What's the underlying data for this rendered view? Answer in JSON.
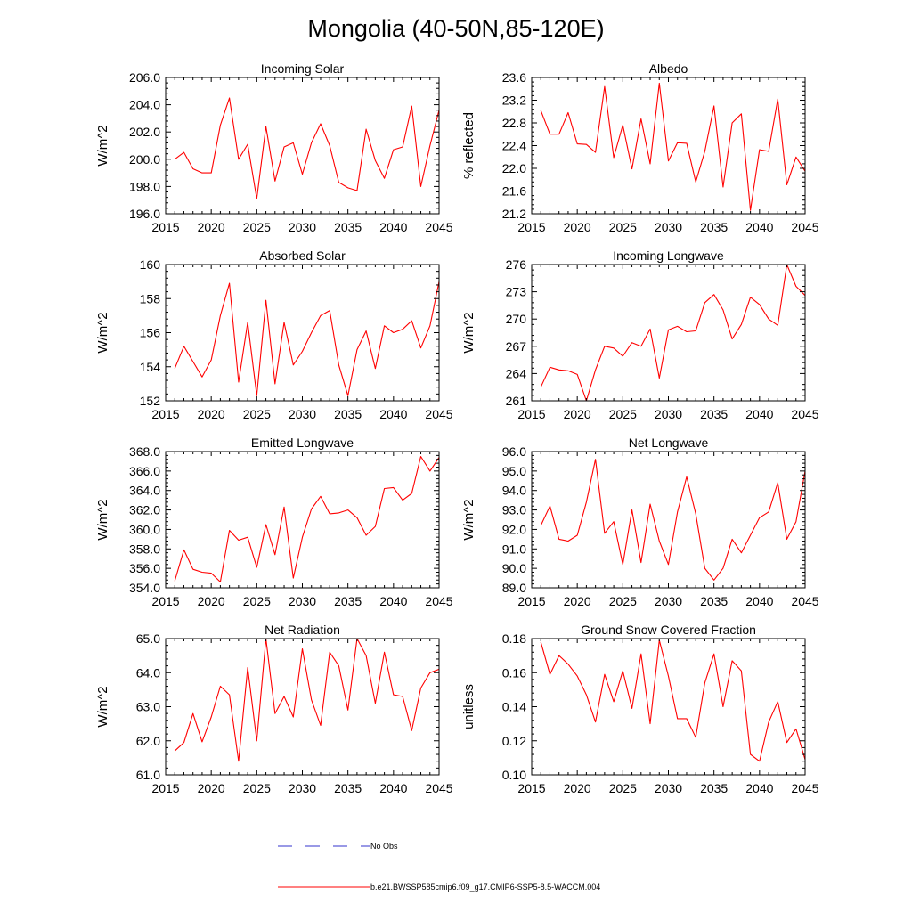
{
  "figure_title": "Mongolia (40-50N,85-120E)",
  "legend": [
    {
      "label": "No Obs",
      "color": "#3333cc",
      "style": "dashed"
    },
    {
      "label": "b.e21.BWSSP585cmip6.f09_g17.CMIP6-SSP5-8.5-WACCM.004",
      "color": "#ff0000",
      "style": "solid"
    }
  ],
  "chart_data": [
    {
      "type": "line",
      "title": "Incoming Solar",
      "xlabel": "",
      "ylabel": "W/m^2",
      "xlim": [
        2015,
        2045
      ],
      "ylim": [
        196,
        206
      ],
      "xticks": [
        2015,
        2020,
        2025,
        2030,
        2035,
        2040,
        2045
      ],
      "xtick_labels": [
        "2015",
        "2020",
        "2025",
        "2030",
        "2035",
        "2040",
        "2045"
      ],
      "yticks": [
        196,
        198,
        200,
        202,
        204,
        206
      ],
      "ytick_labels": [
        "196.0",
        "198.0",
        "200.0",
        "202.0",
        "204.0",
        "206.0"
      ],
      "series": [
        {
          "name": "b.e21.BWSSP585cmip6.f09_g17.CMIP6-SSP5-8.5-WACCM.004",
          "color": "#ff0000",
          "x": [
            2016,
            2017,
            2018,
            2019,
            2020,
            2021,
            2022,
            2023,
            2024,
            2025,
            2026,
            2027,
            2028,
            2029,
            2030,
            2031,
            2032,
            2033,
            2034,
            2035,
            2036,
            2037,
            2038,
            2039,
            2040,
            2041,
            2042,
            2043,
            2044,
            2045
          ],
          "y": [
            200.0,
            200.5,
            199.3,
            199.0,
            199.0,
            202.5,
            204.5,
            200.0,
            201.1,
            197.1,
            202.4,
            198.4,
            200.9,
            201.2,
            198.9,
            201.2,
            202.6,
            201.0,
            198.3,
            197.9,
            197.7,
            202.2,
            199.9,
            198.6,
            200.7,
            200.9,
            203.9,
            198.0,
            201.0,
            203.6
          ]
        }
      ]
    },
    {
      "type": "line",
      "title": "Albedo",
      "xlabel": "",
      "ylabel": "% reflected",
      "xlim": [
        2015,
        2045
      ],
      "ylim": [
        21.2,
        23.6
      ],
      "xticks": [
        2015,
        2020,
        2025,
        2030,
        2035,
        2040,
        2045
      ],
      "xtick_labels": [
        "2015",
        "2020",
        "2025",
        "2030",
        "2035",
        "2040",
        "2045"
      ],
      "yticks": [
        21.2,
        21.6,
        22.0,
        22.4,
        22.8,
        23.2,
        23.6
      ],
      "ytick_labels": [
        "21.2",
        "21.6",
        "22.0",
        "22.4",
        "22.8",
        "23.2",
        "23.6"
      ],
      "series": [
        {
          "name": "b.e21.BWSSP585cmip6.f09_g17.CMIP6-SSP5-8.5-WACCM.004",
          "color": "#ff0000",
          "x": [
            2016,
            2017,
            2018,
            2019,
            2020,
            2021,
            2022,
            2023,
            2024,
            2025,
            2026,
            2027,
            2028,
            2029,
            2030,
            2031,
            2032,
            2033,
            2034,
            2035,
            2036,
            2037,
            2038,
            2039,
            2040,
            2041,
            2042,
            2043,
            2044,
            2045
          ],
          "y": [
            23.02,
            22.6,
            22.6,
            22.98,
            22.43,
            22.42,
            22.28,
            23.44,
            22.19,
            22.76,
            21.99,
            22.87,
            22.08,
            23.5,
            22.13,
            22.45,
            22.44,
            21.76,
            22.3,
            23.1,
            21.67,
            22.8,
            22.96,
            21.26,
            22.33,
            22.3,
            23.22,
            21.71,
            22.2,
            21.95
          ]
        }
      ]
    },
    {
      "type": "line",
      "title": "Absorbed Solar",
      "xlabel": "",
      "ylabel": "W/m^2",
      "xlim": [
        2015,
        2045
      ],
      "ylim": [
        152,
        160
      ],
      "xticks": [
        2015,
        2020,
        2025,
        2030,
        2035,
        2040,
        2045
      ],
      "xtick_labels": [
        "2015",
        "2020",
        "2025",
        "2030",
        "2035",
        "2040",
        "2045"
      ],
      "yticks": [
        152,
        154,
        156,
        158,
        160
      ],
      "ytick_labels": [
        "152",
        "154",
        "156",
        "158",
        "160"
      ],
      "series": [
        {
          "name": "b.e21.BWSSP585cmip6.f09_g17.CMIP6-SSP5-8.5-WACCM.004",
          "color": "#ff0000",
          "x": [
            2016,
            2017,
            2018,
            2019,
            2020,
            2021,
            2022,
            2023,
            2024,
            2025,
            2026,
            2027,
            2028,
            2029,
            2030,
            2031,
            2032,
            2033,
            2034,
            2035,
            2036,
            2037,
            2038,
            2039,
            2040,
            2041,
            2042,
            2043,
            2044,
            2045
          ],
          "y": [
            153.9,
            155.2,
            154.3,
            153.4,
            154.4,
            157.0,
            158.9,
            153.1,
            156.6,
            152.3,
            157.9,
            153.0,
            156.6,
            154.1,
            154.9,
            156.0,
            157.0,
            157.3,
            154.1,
            152.3,
            155.0,
            156.1,
            153.9,
            156.4,
            156.0,
            156.2,
            156.7,
            155.1,
            156.4,
            159.0
          ]
        }
      ]
    },
    {
      "type": "line",
      "title": "Incoming Longwave",
      "xlabel": "",
      "ylabel": "W/m^2",
      "xlim": [
        2015,
        2045
      ],
      "ylim": [
        261,
        276
      ],
      "xticks": [
        2015,
        2020,
        2025,
        2030,
        2035,
        2040,
        2045
      ],
      "xtick_labels": [
        "2015",
        "2020",
        "2025",
        "2030",
        "2035",
        "2040",
        "2045"
      ],
      "yticks": [
        261,
        264,
        267,
        270,
        273,
        276
      ],
      "ytick_labels": [
        "261",
        "264",
        "267",
        "270",
        "273",
        "276"
      ],
      "series": [
        {
          "name": "b.e21.BWSSP585cmip6.f09_g17.CMIP6-SSP5-8.5-WACCM.004",
          "color": "#ff0000",
          "x": [
            2016,
            2017,
            2018,
            2019,
            2020,
            2021,
            2022,
            2023,
            2024,
            2025,
            2026,
            2027,
            2028,
            2029,
            2030,
            2031,
            2032,
            2033,
            2034,
            2035,
            2036,
            2037,
            2038,
            2039,
            2040,
            2041,
            2042,
            2043,
            2044,
            2045
          ],
          "y": [
            262.5,
            264.7,
            264.4,
            264.3,
            263.9,
            261.0,
            264.4,
            267.0,
            266.8,
            265.9,
            267.4,
            267.0,
            268.9,
            263.5,
            268.8,
            269.2,
            268.6,
            268.7,
            271.8,
            272.7,
            271.0,
            267.8,
            269.4,
            272.4,
            271.6,
            270.0,
            269.3,
            276.0,
            273.6,
            272.6
          ]
        }
      ]
    },
    {
      "type": "line",
      "title": "Emitted Longwave",
      "xlabel": "",
      "ylabel": "W/m^2",
      "xlim": [
        2015,
        2045
      ],
      "ylim": [
        354,
        368
      ],
      "xticks": [
        2015,
        2020,
        2025,
        2030,
        2035,
        2040,
        2045
      ],
      "xtick_labels": [
        "2015",
        "2020",
        "2025",
        "2030",
        "2035",
        "2040",
        "2045"
      ],
      "yticks": [
        354,
        356,
        358,
        360,
        362,
        364,
        366,
        368
      ],
      "ytick_labels": [
        "354.0",
        "356.0",
        "358.0",
        "360.0",
        "362.0",
        "364.0",
        "366.0",
        "368.0"
      ],
      "series": [
        {
          "name": "b.e21.BWSSP585cmip6.f09_g17.CMIP6-SSP5-8.5-WACCM.004",
          "color": "#ff0000",
          "x": [
            2016,
            2017,
            2018,
            2019,
            2020,
            2021,
            2022,
            2023,
            2024,
            2025,
            2026,
            2027,
            2028,
            2029,
            2030,
            2031,
            2032,
            2033,
            2034,
            2035,
            2036,
            2037,
            2038,
            2039,
            2040,
            2041,
            2042,
            2043,
            2044,
            2045
          ],
          "y": [
            354.7,
            357.9,
            355.9,
            355.6,
            355.5,
            354.6,
            359.9,
            358.9,
            359.2,
            356.1,
            360.5,
            357.4,
            362.3,
            355.0,
            359.2,
            362.1,
            363.4,
            361.6,
            361.7,
            362.0,
            361.2,
            359.4,
            360.3,
            364.2,
            364.3,
            363.0,
            363.7,
            367.5,
            366.0,
            367.4
          ]
        }
      ]
    },
    {
      "type": "line",
      "title": "Net Longwave",
      "xlabel": "",
      "ylabel": "W/m^2",
      "xlim": [
        2015,
        2045
      ],
      "ylim": [
        89,
        96
      ],
      "xticks": [
        2015,
        2020,
        2025,
        2030,
        2035,
        2040,
        2045
      ],
      "xtick_labels": [
        "2015",
        "2020",
        "2025",
        "2030",
        "2035",
        "2040",
        "2045"
      ],
      "yticks": [
        89,
        90,
        91,
        92,
        93,
        94,
        95,
        96
      ],
      "ytick_labels": [
        "89.0",
        "90.0",
        "91.0",
        "92.0",
        "93.0",
        "94.0",
        "95.0",
        "96.0"
      ],
      "series": [
        {
          "name": "b.e21.BWSSP585cmip6.f09_g17.CMIP6-SSP5-8.5-WACCM.004",
          "color": "#ff0000",
          "x": [
            2016,
            2017,
            2018,
            2019,
            2020,
            2021,
            2022,
            2023,
            2024,
            2025,
            2026,
            2027,
            2028,
            2029,
            2030,
            2031,
            2032,
            2033,
            2034,
            2035,
            2036,
            2037,
            2038,
            2039,
            2040,
            2041,
            2042,
            2043,
            2044,
            2045
          ],
          "y": [
            92.2,
            93.2,
            91.5,
            91.4,
            91.7,
            93.4,
            95.6,
            91.8,
            92.4,
            90.2,
            93.0,
            90.3,
            93.3,
            91.4,
            90.2,
            92.9,
            94.7,
            92.8,
            90.0,
            89.4,
            90.0,
            91.5,
            90.8,
            91.7,
            92.6,
            92.9,
            94.4,
            91.5,
            92.4,
            95.0
          ]
        }
      ]
    },
    {
      "type": "line",
      "title": "Net Radiation",
      "xlabel": "",
      "ylabel": "W/m^2",
      "xlim": [
        2015,
        2045
      ],
      "ylim": [
        61,
        65
      ],
      "xticks": [
        2015,
        2020,
        2025,
        2030,
        2035,
        2040,
        2045
      ],
      "xtick_labels": [
        "2015",
        "2020",
        "2025",
        "2030",
        "2035",
        "2040",
        "2045"
      ],
      "yticks": [
        61,
        62,
        63,
        64,
        65
      ],
      "ytick_labels": [
        "61.0",
        "62.0",
        "63.0",
        "64.0",
        "65.0"
      ],
      "series": [
        {
          "name": "b.e21.BWSSP585cmip6.f09_g17.CMIP6-SSP5-8.5-WACCM.004",
          "color": "#ff0000",
          "x": [
            2016,
            2017,
            2018,
            2019,
            2020,
            2021,
            2022,
            2023,
            2024,
            2025,
            2026,
            2027,
            2028,
            2029,
            2030,
            2031,
            2032,
            2033,
            2034,
            2035,
            2036,
            2037,
            2038,
            2039,
            2040,
            2041,
            2042,
            2043,
            2044,
            2045
          ],
          "y": [
            61.7,
            61.95,
            62.8,
            61.97,
            62.7,
            63.6,
            63.35,
            61.4,
            64.15,
            62.0,
            65.0,
            62.8,
            63.3,
            62.7,
            64.7,
            63.2,
            62.45,
            64.6,
            64.2,
            62.9,
            65.0,
            64.5,
            63.1,
            64.6,
            63.35,
            63.3,
            62.3,
            63.55,
            64.0,
            64.1
          ]
        }
      ]
    },
    {
      "type": "line",
      "title": "Ground Snow Covered Fraction",
      "xlabel": "",
      "ylabel": "unitless",
      "xlim": [
        2015,
        2045
      ],
      "ylim": [
        0.1,
        0.18
      ],
      "xticks": [
        2015,
        2020,
        2025,
        2030,
        2035,
        2040,
        2045
      ],
      "xtick_labels": [
        "2015",
        "2020",
        "2025",
        "2030",
        "2035",
        "2040",
        "2045"
      ],
      "yticks": [
        0.1,
        0.12,
        0.14,
        0.16,
        0.18
      ],
      "ytick_labels": [
        "0.10",
        "0.12",
        "0.14",
        "0.16",
        "0.18"
      ],
      "series": [
        {
          "name": "b.e21.BWSSP585cmip6.f09_g17.CMIP6-SSP5-8.5-WACCM.004",
          "color": "#ff0000",
          "x": [
            2016,
            2017,
            2018,
            2019,
            2020,
            2021,
            2022,
            2023,
            2024,
            2025,
            2026,
            2027,
            2028,
            2029,
            2030,
            2031,
            2032,
            2033,
            2034,
            2035,
            2036,
            2037,
            2038,
            2039,
            2040,
            2041,
            2042,
            2043,
            2044,
            2045
          ],
          "y": [
            0.178,
            0.159,
            0.17,
            0.165,
            0.158,
            0.147,
            0.131,
            0.159,
            0.143,
            0.161,
            0.139,
            0.171,
            0.13,
            0.179,
            0.158,
            0.133,
            0.133,
            0.122,
            0.154,
            0.171,
            0.14,
            0.167,
            0.161,
            0.112,
            0.108,
            0.131,
            0.143,
            0.119,
            0.127,
            0.109
          ]
        }
      ]
    }
  ]
}
